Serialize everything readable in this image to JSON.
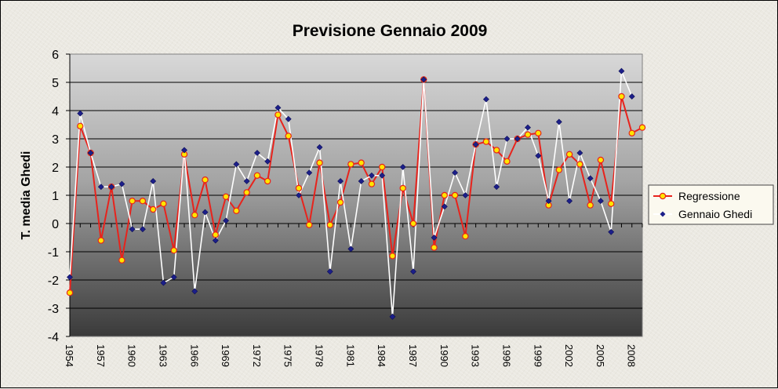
{
  "chart_data": {
    "type": "line",
    "title": "Previsione Gennaio 2009",
    "xlabel": "",
    "ylabel": "T. media Ghedi",
    "ylim": [
      -4,
      6
    ],
    "yticks": [
      "-4",
      "-3",
      "-2",
      "-1",
      "0",
      "1",
      "2",
      "3",
      "4",
      "5",
      "6"
    ],
    "x": [
      1954,
      1955,
      1956,
      1957,
      1958,
      1959,
      1960,
      1961,
      1962,
      1963,
      1964,
      1965,
      1966,
      1967,
      1968,
      1969,
      1970,
      1971,
      1972,
      1973,
      1974,
      1975,
      1976,
      1977,
      1978,
      1979,
      1980,
      1981,
      1982,
      1983,
      1984,
      1985,
      1986,
      1987,
      1988,
      1989,
      1990,
      1991,
      1992,
      1993,
      1994,
      1995,
      1996,
      1997,
      1998,
      1999,
      2000,
      2001,
      2002,
      2003,
      2004,
      2005,
      2006,
      2007,
      2008,
      2009
    ],
    "xticks": [
      "1954",
      "1957",
      "1960",
      "1963",
      "1966",
      "1969",
      "1972",
      "1975",
      "1978",
      "1981",
      "1984",
      "1987",
      "1990",
      "1993",
      "1996",
      "1999",
      "2002",
      "2005",
      "2008"
    ],
    "grid": true,
    "legend_position": "right",
    "series": [
      {
        "name": "Regressione",
        "color": "#e8231c",
        "marker_color": "#ffe500",
        "values": [
          -2.45,
          3.45,
          2.5,
          -0.6,
          1.3,
          -1.3,
          0.8,
          0.8,
          0.5,
          0.7,
          -0.95,
          2.45,
          0.3,
          1.55,
          -0.4,
          0.95,
          0.45,
          1.1,
          1.7,
          1.5,
          3.85,
          3.1,
          1.25,
          -0.05,
          2.15,
          -0.05,
          0.75,
          2.1,
          2.15,
          1.4,
          2.0,
          -1.15,
          1.25,
          0.0,
          5.1,
          -0.85,
          1.0,
          1.0,
          -0.45,
          2.8,
          2.9,
          2.6,
          2.2,
          3.0,
          3.15,
          3.2,
          0.65,
          1.9,
          2.45,
          2.1,
          0.65,
          2.25,
          0.7,
          4.5,
          3.2,
          3.4
        ]
      },
      {
        "name": "Gennaio Ghedi",
        "color": "#ffffff",
        "marker_color": "#1c1f8a",
        "values": [
          -1.9,
          3.9,
          2.5,
          1.3,
          1.3,
          1.4,
          -0.2,
          -0.2,
          1.5,
          -2.1,
          -1.9,
          2.6,
          -2.4,
          0.4,
          -0.6,
          0.1,
          2.1,
          1.5,
          2.5,
          2.2,
          4.1,
          3.7,
          1.0,
          1.8,
          2.7,
          -1.7,
          1.5,
          -0.9,
          1.5,
          1.7,
          1.7,
          -3.3,
          2.0,
          -1.7,
          5.1,
          -0.5,
          0.6,
          1.8,
          1.0,
          2.8,
          4.4,
          1.3,
          3.0,
          3.0,
          3.4,
          2.4,
          0.8,
          3.6,
          0.8,
          2.5,
          1.6,
          0.8,
          -0.3,
          5.4,
          4.5,
          null
        ]
      }
    ]
  }
}
